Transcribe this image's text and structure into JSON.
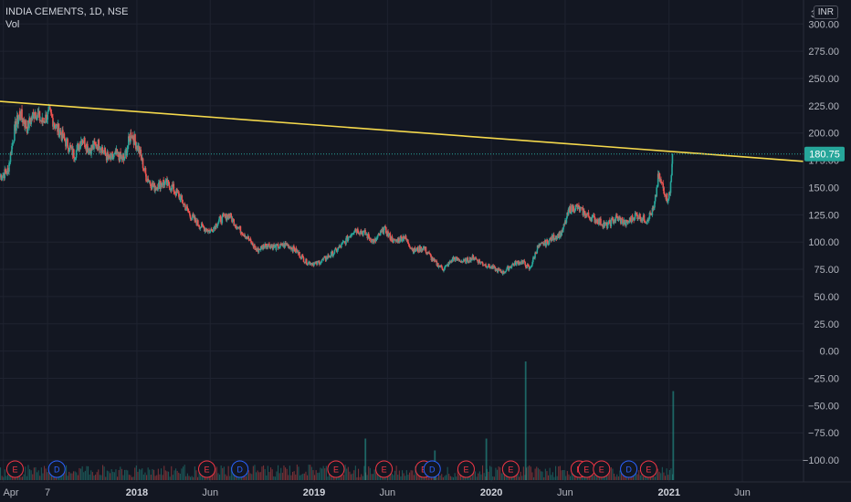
{
  "header": {
    "title": "INDIA CEMENTS, 1D, NSE",
    "vol": "Vol"
  },
  "currency": "INR",
  "axis_top_label": "3",
  "colors": {
    "background": "#131722",
    "grid": "#1f2330",
    "text": "#b2b5be",
    "up": "#26a69a",
    "down": "#ef5350",
    "trendline": "#f5d94c",
    "price_tag": "#26a69a",
    "earnings": "#f23645",
    "dividend": "#2962ff"
  },
  "chart_data": {
    "type": "candlestick",
    "symbol": "INDIA CEMENTS",
    "interval": "1D",
    "exchange": "NSE",
    "y_ticks": [
      300,
      275,
      250,
      225,
      200,
      175,
      150,
      125,
      100,
      75,
      50,
      25,
      0,
      -25,
      -50,
      -75,
      -100
    ],
    "y_tick_labels": [
      "300.00",
      "275.00",
      "250.00",
      "225.00",
      "200.00",
      "175.00",
      "150.00",
      "125.00",
      "100.00",
      "75.00",
      "50.00",
      "25.00",
      "0.00",
      "−25.00",
      "−50.00",
      "−75.00",
      "−100.00"
    ],
    "ylim": [
      -120,
      322
    ],
    "xlim": [
      "2017-03-25",
      "2021-10-05"
    ],
    "x_ticks": [
      {
        "date": "2017-04-01",
        "label": "Apr",
        "bold": false
      },
      {
        "date": "2017-07-01",
        "label": "7",
        "bold": false
      },
      {
        "date": "2018-01-01",
        "label": "2018",
        "bold": true
      },
      {
        "date": "2018-06-01",
        "label": "Jun",
        "bold": false
      },
      {
        "date": "2019-01-01",
        "label": "2019",
        "bold": true
      },
      {
        "date": "2019-06-01",
        "label": "Jun",
        "bold": false
      },
      {
        "date": "2020-01-01",
        "label": "2020",
        "bold": true
      },
      {
        "date": "2020-06-01",
        "label": "Jun",
        "bold": false
      },
      {
        "date": "2021-01-01",
        "label": "2021",
        "bold": true
      },
      {
        "date": "2021-06-01",
        "label": "Jun",
        "bold": false
      }
    ],
    "last_price": 180.75,
    "last_price_label": "180.75",
    "price_path": [
      {
        "date": "2017-03-25",
        "close": 160
      },
      {
        "date": "2017-04-10",
        "close": 165
      },
      {
        "date": "2017-04-25",
        "close": 205
      },
      {
        "date": "2017-05-05",
        "close": 218
      },
      {
        "date": "2017-05-20",
        "close": 205
      },
      {
        "date": "2017-06-05",
        "close": 220
      },
      {
        "date": "2017-06-20",
        "close": 210
      },
      {
        "date": "2017-07-05",
        "close": 218
      },
      {
        "date": "2017-07-20",
        "close": 205
      },
      {
        "date": "2017-08-10",
        "close": 190
      },
      {
        "date": "2017-08-25",
        "close": 180
      },
      {
        "date": "2017-09-10",
        "close": 195
      },
      {
        "date": "2017-09-25",
        "close": 185
      },
      {
        "date": "2017-10-15",
        "close": 190
      },
      {
        "date": "2017-11-05",
        "close": 175
      },
      {
        "date": "2017-11-20",
        "close": 180
      },
      {
        "date": "2017-12-05",
        "close": 175
      },
      {
        "date": "2017-12-20",
        "close": 200
      },
      {
        "date": "2018-01-05",
        "close": 185
      },
      {
        "date": "2018-01-20",
        "close": 160
      },
      {
        "date": "2018-02-05",
        "close": 150
      },
      {
        "date": "2018-02-25",
        "close": 155
      },
      {
        "date": "2018-03-15",
        "close": 150
      },
      {
        "date": "2018-04-01",
        "close": 140
      },
      {
        "date": "2018-04-20",
        "close": 125
      },
      {
        "date": "2018-05-10",
        "close": 115
      },
      {
        "date": "2018-06-01",
        "close": 110
      },
      {
        "date": "2018-06-20",
        "close": 120
      },
      {
        "date": "2018-07-10",
        "close": 125
      },
      {
        "date": "2018-07-25",
        "close": 115
      },
      {
        "date": "2018-08-15",
        "close": 105
      },
      {
        "date": "2018-09-05",
        "close": 92
      },
      {
        "date": "2018-09-25",
        "close": 98
      },
      {
        "date": "2018-10-15",
        "close": 95
      },
      {
        "date": "2018-11-05",
        "close": 98
      },
      {
        "date": "2018-11-25",
        "close": 92
      },
      {
        "date": "2018-12-15",
        "close": 82
      },
      {
        "date": "2019-01-05",
        "close": 80
      },
      {
        "date": "2019-01-25",
        "close": 85
      },
      {
        "date": "2019-02-15",
        "close": 92
      },
      {
        "date": "2019-03-05",
        "close": 100
      },
      {
        "date": "2019-03-25",
        "close": 112
      },
      {
        "date": "2019-04-15",
        "close": 108
      },
      {
        "date": "2019-05-05",
        "close": 100
      },
      {
        "date": "2019-05-25",
        "close": 112
      },
      {
        "date": "2019-06-15",
        "close": 100
      },
      {
        "date": "2019-07-05",
        "close": 105
      },
      {
        "date": "2019-07-25",
        "close": 92
      },
      {
        "date": "2019-08-15",
        "close": 95
      },
      {
        "date": "2019-09-05",
        "close": 82
      },
      {
        "date": "2019-09-25",
        "close": 75
      },
      {
        "date": "2019-10-15",
        "close": 85
      },
      {
        "date": "2019-11-05",
        "close": 82
      },
      {
        "date": "2019-11-25",
        "close": 86
      },
      {
        "date": "2019-12-15",
        "close": 80
      },
      {
        "date": "2020-01-05",
        "close": 76
      },
      {
        "date": "2020-01-25",
        "close": 72
      },
      {
        "date": "2020-02-15",
        "close": 80
      },
      {
        "date": "2020-03-05",
        "close": 82
      },
      {
        "date": "2020-03-20",
        "close": 75
      },
      {
        "date": "2020-04-05",
        "close": 95
      },
      {
        "date": "2020-04-25",
        "close": 100
      },
      {
        "date": "2020-05-10",
        "close": 105
      },
      {
        "date": "2020-05-25",
        "close": 108
      },
      {
        "date": "2020-06-10",
        "close": 130
      },
      {
        "date": "2020-06-25",
        "close": 132
      },
      {
        "date": "2020-07-15",
        "close": 125
      },
      {
        "date": "2020-08-05",
        "close": 120
      },
      {
        "date": "2020-08-25",
        "close": 115
      },
      {
        "date": "2020-09-15",
        "close": 122
      },
      {
        "date": "2020-10-05",
        "close": 117
      },
      {
        "date": "2020-10-25",
        "close": 125
      },
      {
        "date": "2020-11-15",
        "close": 120
      },
      {
        "date": "2020-12-01",
        "close": 130
      },
      {
        "date": "2020-12-10",
        "close": 160
      },
      {
        "date": "2020-12-20",
        "close": 150
      },
      {
        "date": "2020-12-28",
        "close": 140
      },
      {
        "date": "2021-01-03",
        "close": 145
      },
      {
        "date": "2021-01-08",
        "close": 180.75
      }
    ],
    "trendline": {
      "start": {
        "date": "2017-03-25",
        "value": 229
      },
      "end": {
        "date": "2021-10-05",
        "value": 174
      }
    },
    "volume_spikes": [
      {
        "date": "2019-04-15",
        "height": 0.35
      },
      {
        "date": "2019-09-05",
        "height": 0.25
      },
      {
        "date": "2019-12-20",
        "height": 0.35
      },
      {
        "date": "2020-03-10",
        "height": 1.0
      },
      {
        "date": "2021-01-08",
        "height": 0.75
      }
    ],
    "events": [
      {
        "date": "2017-04-25",
        "type": "E"
      },
      {
        "date": "2017-07-20",
        "type": "D"
      },
      {
        "date": "2018-05-25",
        "type": "E"
      },
      {
        "date": "2018-08-01",
        "type": "D"
      },
      {
        "date": "2019-02-15",
        "type": "E"
      },
      {
        "date": "2019-05-25",
        "type": "E"
      },
      {
        "date": "2019-08-15",
        "type": "E"
      },
      {
        "date": "2019-09-01",
        "type": "D"
      },
      {
        "date": "2019-11-10",
        "type": "E"
      },
      {
        "date": "2020-02-10",
        "type": "E"
      },
      {
        "date": "2020-06-30",
        "type": "E"
      },
      {
        "date": "2020-07-15",
        "type": "E"
      },
      {
        "date": "2020-08-15",
        "type": "E"
      },
      {
        "date": "2020-10-10",
        "type": "D"
      },
      {
        "date": "2020-11-20",
        "type": "E"
      }
    ]
  }
}
